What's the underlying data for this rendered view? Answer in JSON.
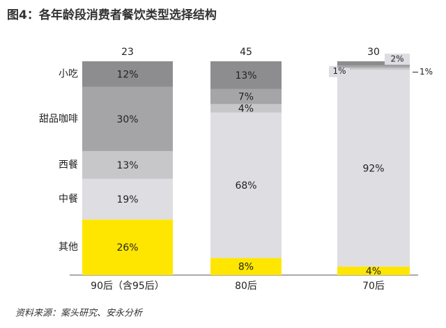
{
  "chart_data": {
    "type": "stacked-bar",
    "title": "图4：各年龄段消费者餐饮类型选择结构",
    "source": "资料来源：案头研究、安永分析",
    "categories": [
      "90后（含95后）",
      "80后",
      "70后"
    ],
    "top_labels": [
      23,
      45,
      30
    ],
    "ylim": [
      0,
      100
    ],
    "series": [
      {
        "name": "其他",
        "color": "#ffe600",
        "values": [
          26,
          8,
          4
        ],
        "value_labels": [
          "26%",
          "8%",
          "4%"
        ]
      },
      {
        "name": "中餐",
        "color": "#dedde2",
        "values": [
          19,
          68,
          92
        ],
        "value_labels": [
          "19%",
          "68%",
          "92%"
        ]
      },
      {
        "name": "西餐",
        "color": "#c7c7c9",
        "values": [
          13,
          4,
          1
        ],
        "value_labels": [
          "13%",
          "4%",
          "1%"
        ]
      },
      {
        "name": "甜品咖啡",
        "color": "#a5a5a7",
        "values": [
          30,
          7,
          1
        ],
        "value_labels": [
          "30%",
          "7%",
          "1%"
        ]
      },
      {
        "name": "小吃",
        "color": "#8d8d8f",
        "values": [
          12,
          13,
          2
        ],
        "value_labels": [
          "12%",
          "13%",
          "2%"
        ]
      }
    ]
  }
}
